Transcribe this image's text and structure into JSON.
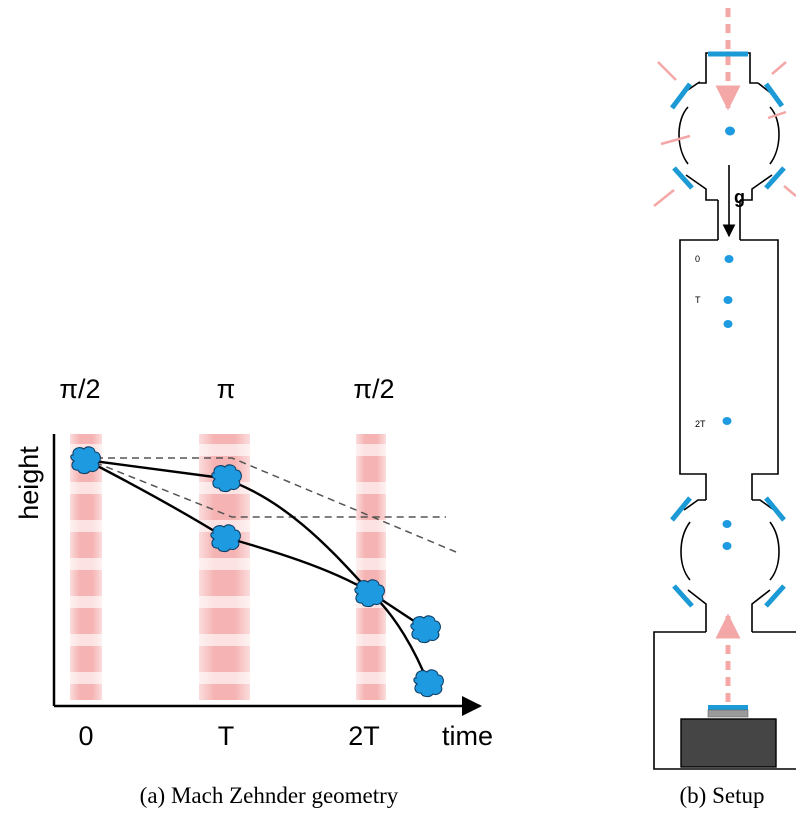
{
  "panel_a": {
    "pulse_labels": [
      "π/2",
      "π",
      "π/2"
    ],
    "y_axis_label": "height",
    "x_axis_label": "time",
    "x_ticks": [
      "0",
      "T",
      "2T"
    ],
    "caption": "(a) Mach Zehnder geometry"
  },
  "panel_b": {
    "gravity_label": "g",
    "time_labels": [
      "0",
      "T",
      "2T"
    ],
    "caption": "(b) Setup"
  },
  "colors": {
    "laser_pink": "#f4a7a7",
    "atom_blue": "#1e9be0",
    "mirror_blue": "#1b9ad6",
    "laser_box": "#454545"
  }
}
